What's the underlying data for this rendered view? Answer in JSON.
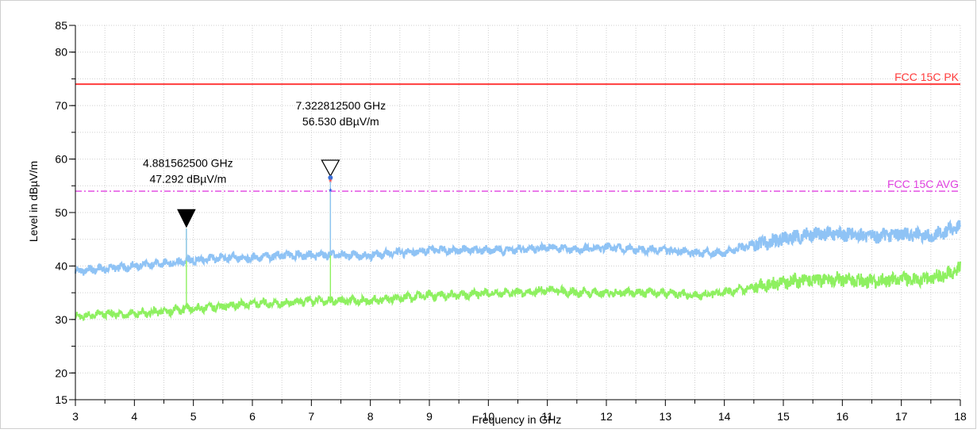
{
  "chart_data": {
    "type": "line",
    "xlabel": "Frequency in GHz",
    "ylabel": "Level in dBµV/m",
    "xlim": [
      3,
      18
    ],
    "ylim": [
      15,
      85
    ],
    "x_ticks": [
      "3",
      "4",
      "5",
      "6",
      "7",
      "8",
      "9",
      "10",
      "11",
      "12",
      "13",
      "14",
      "15",
      "16",
      "17",
      "18"
    ],
    "y_ticks": [
      "15",
      "20",
      "30",
      "40",
      "50",
      "60",
      "70",
      "80",
      "85"
    ],
    "grid": true,
    "limit_lines": [
      {
        "name": "FCC 15C PK",
        "value": 74,
        "color": "#ff3b3b",
        "style": "solid"
      },
      {
        "name": "FCC 15C AVG",
        "value": 54,
        "color": "#e040e0",
        "style": "dashdot"
      }
    ],
    "series": [
      {
        "color": "#8fc3f5",
        "x": [
          3,
          3.5,
          4,
          4.5,
          5,
          5.5,
          6,
          6.5,
          7,
          7.5,
          8,
          8.5,
          9,
          9.5,
          10,
          10.5,
          11,
          11.5,
          12,
          12.5,
          13,
          13.5,
          14,
          14.5,
          15,
          15.5,
          16,
          16.5,
          17,
          17.5,
          18
        ],
        "y": [
          39,
          39.5,
          40,
          40.5,
          41,
          41.5,
          41.5,
          42,
          42,
          42,
          42,
          42.5,
          43,
          43,
          43,
          43,
          43.5,
          43,
          43.5,
          43,
          43,
          42.5,
          42.5,
          44,
          45,
          46,
          46,
          45.5,
          46,
          45.5,
          47.5
        ]
      },
      {
        "color": "#8ef060",
        "x": [
          3,
          3.5,
          4,
          4.5,
          5,
          5.5,
          6,
          6.5,
          7,
          7.5,
          8,
          8.5,
          9,
          9.5,
          10,
          10.5,
          11,
          11.5,
          12,
          12.5,
          13,
          13.5,
          14,
          14.5,
          15,
          15.5,
          16,
          16.5,
          17,
          17.5,
          18
        ],
        "y": [
          30.5,
          31,
          31,
          31.5,
          32,
          32.5,
          33,
          33,
          33.5,
          33.5,
          33.5,
          34,
          34.5,
          34.5,
          35,
          35,
          35.5,
          35,
          35,
          35,
          35,
          34.5,
          35,
          36,
          37,
          37.5,
          37.5,
          37,
          37.5,
          37.5,
          39.5
        ]
      }
    ],
    "markers": [
      {
        "freq_label": "4.881562500 GHz",
        "level_label": "47.292 dBµV/m",
        "x": 4.8816,
        "y": 47.292,
        "filled": true
      },
      {
        "freq_label": "7.322812500 GHz",
        "level_label": "56.530 dBµV/m",
        "x": 7.3228,
        "y": 56.53,
        "filled": false
      }
    ]
  }
}
